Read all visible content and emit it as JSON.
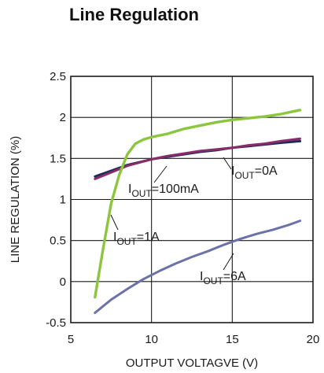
{
  "chart_data": {
    "type": "line",
    "title": "Line Regulation",
    "xlabel": "OUTPUT VOLTAGVE (V)",
    "ylabel": "LINE REGULATION (%)",
    "xlim": [
      5,
      20
    ],
    "ylim": [
      -0.5,
      2.5
    ],
    "x_ticks": [
      "5",
      "10",
      "15",
      "20"
    ],
    "y_ticks": [
      "-0.5",
      "0",
      "0.5",
      "1",
      "1.5",
      "2",
      "2.5"
    ],
    "grid": true,
    "series": [
      {
        "name": "IOUT=0A",
        "label_main": "I",
        "label_sub": "OUT",
        "label_tail": "=0A",
        "color": "#1f2a5c",
        "points": [
          [
            6.5,
            1.28
          ],
          [
            7.5,
            1.35
          ],
          [
            8.5,
            1.42
          ],
          [
            10,
            1.49
          ],
          [
            11,
            1.52
          ],
          [
            12,
            1.55
          ],
          [
            13,
            1.58
          ],
          [
            14,
            1.6
          ],
          [
            15,
            1.63
          ],
          [
            16,
            1.65
          ],
          [
            17,
            1.67
          ],
          [
            18,
            1.69
          ],
          [
            19.2,
            1.71
          ]
        ]
      },
      {
        "name": "IOUT=100mA",
        "label_main": "I",
        "label_sub": "OUT",
        "label_tail": "=100mA",
        "color": "#8a2c68",
        "points": [
          [
            6.5,
            1.25
          ],
          [
            7.5,
            1.33
          ],
          [
            8.5,
            1.41
          ],
          [
            10,
            1.49
          ],
          [
            11,
            1.53
          ],
          [
            12,
            1.56
          ],
          [
            13,
            1.59
          ],
          [
            14,
            1.61
          ],
          [
            15,
            1.63
          ],
          [
            16,
            1.66
          ],
          [
            17,
            1.68
          ],
          [
            18,
            1.71
          ],
          [
            19.2,
            1.74
          ]
        ]
      },
      {
        "name": "IOUT=1A",
        "label_main": "I",
        "label_sub": "OUT",
        "label_tail": "=1A",
        "color": "#8cc63f",
        "points": [
          [
            6.5,
            -0.19
          ],
          [
            7.0,
            0.4
          ],
          [
            7.5,
            0.95
          ],
          [
            8.0,
            1.3
          ],
          [
            8.5,
            1.55
          ],
          [
            9.0,
            1.68
          ],
          [
            9.5,
            1.73
          ],
          [
            10.0,
            1.76
          ],
          [
            11,
            1.8
          ],
          [
            12,
            1.86
          ],
          [
            13,
            1.9
          ],
          [
            14,
            1.94
          ],
          [
            15,
            1.97
          ],
          [
            16,
            1.99
          ],
          [
            17,
            2.01
          ],
          [
            18,
            2.04
          ],
          [
            19.2,
            2.09
          ]
        ]
      },
      {
        "name": "IOUT=6A",
        "label_main": "I",
        "label_sub": "OUT",
        "label_tail": "=6A",
        "color": "#6a72a8",
        "points": [
          [
            6.5,
            -0.38
          ],
          [
            7.5,
            -0.22
          ],
          [
            8.5,
            -0.09
          ],
          [
            9.5,
            0.03
          ],
          [
            10.5,
            0.13
          ],
          [
            11.5,
            0.22
          ],
          [
            12.5,
            0.3
          ],
          [
            13.5,
            0.37
          ],
          [
            14.5,
            0.45
          ],
          [
            15.5,
            0.52
          ],
          [
            16.5,
            0.58
          ],
          [
            17.5,
            0.63
          ],
          [
            18.5,
            0.69
          ],
          [
            19.2,
            0.74
          ]
        ]
      }
    ]
  }
}
